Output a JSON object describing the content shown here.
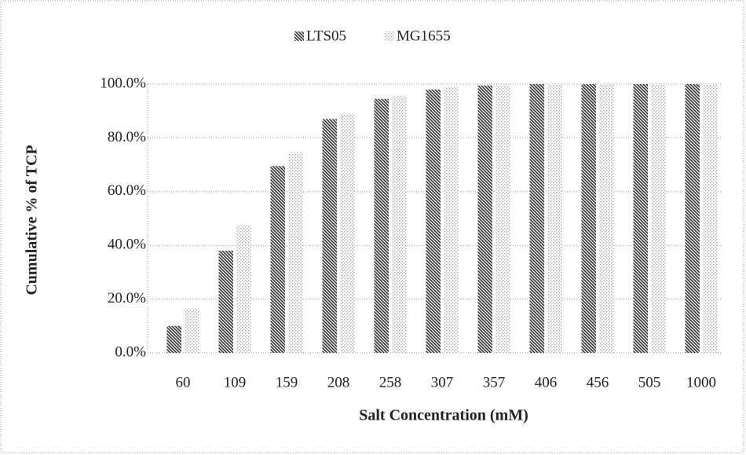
{
  "chart_data": {
    "type": "bar",
    "x_label": "Salt Concentration (mM)",
    "y_label": "Cumulative % of TCP",
    "categories": [
      "60",
      "109",
      "159",
      "208",
      "258",
      "307",
      "357",
      "406",
      "456",
      "505",
      "1000"
    ],
    "series": [
      {
        "name": "LTS05",
        "color": "#333333",
        "values": [
          10,
          38,
          69.5,
          87,
          94.5,
          98,
          99.5,
          100,
          100,
          100,
          100
        ]
      },
      {
        "name": "MG1655",
        "color": "#aaaaaa",
        "values": [
          16.5,
          47.5,
          74.5,
          89,
          95.5,
          99,
          99.5,
          100,
          100,
          100,
          100
        ]
      }
    ],
    "ylim": [
      0,
      100
    ],
    "yticks": [
      {
        "value": 0,
        "label": "0.0%"
      },
      {
        "value": 20,
        "label": "20.0%"
      },
      {
        "value": 40,
        "label": "40.0%"
      },
      {
        "value": 60,
        "label": "60.0%"
      },
      {
        "value": 80,
        "label": "80.0%"
      },
      {
        "value": 100,
        "label": "100.0%"
      }
    ],
    "grid": true,
    "legend": "top"
  }
}
